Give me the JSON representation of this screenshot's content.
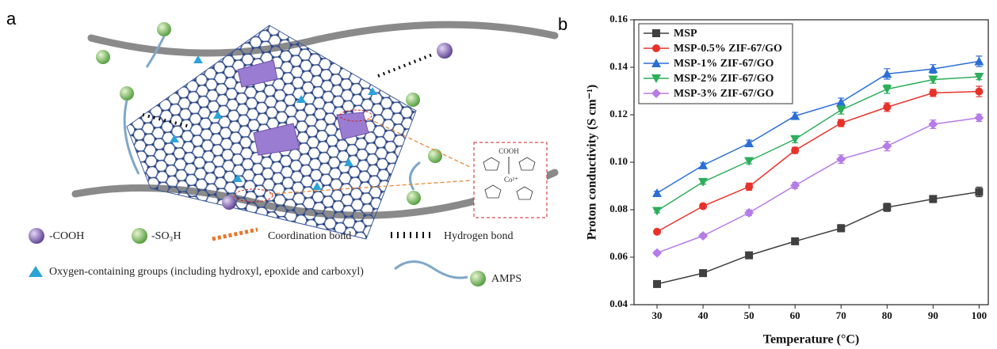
{
  "panel_a": {
    "label": "a",
    "inset_labels": [
      "COOH",
      "Co²⁺"
    ],
    "legend": [
      "-COOH",
      "-SO₃H",
      "Coordination bond",
      "Hydrogen bond",
      "Oxygen-containing groups (including hydroxyl, epoxide and carboxyl)",
      "AMPS"
    ]
  },
  "panel_b": {
    "label": "b"
  },
  "chart_data": {
    "type": "line",
    "x_label": "Temperature (°C)",
    "y_label": "Proton conductivity (S cm⁻¹)",
    "x": [
      30,
      40,
      50,
      60,
      70,
      80,
      90,
      100
    ],
    "xlim": [
      25,
      102
    ],
    "xticks": [
      30,
      40,
      50,
      60,
      70,
      80,
      90,
      100
    ],
    "ylim": [
      0.04,
      0.16
    ],
    "yticks": [
      {
        "value": 0.04,
        "label": "0.04"
      },
      {
        "value": 0.06,
        "label": "0.06"
      },
      {
        "value": 0.08,
        "label": "0.08"
      },
      {
        "value": 0.1,
        "label": "0.10"
      },
      {
        "value": 0.12,
        "label": "0.12"
      },
      {
        "value": 0.14,
        "label": "0.14"
      },
      {
        "value": 0.16,
        "label": "0.16"
      }
    ],
    "legend_position": "upper left",
    "series": [
      {
        "name": "MSP",
        "color": "#404040",
        "marker": "square",
        "values": [
          0.0487,
          0.0533,
          0.0608,
          0.0667,
          0.0722,
          0.081,
          0.0845,
          0.0875
        ],
        "errors": [
          0.0008,
          0.0008,
          0.001,
          0.0013,
          0.0015,
          0.0017,
          0.0015,
          0.002
        ]
      },
      {
        "name": "MSP-0.5% ZIF-67/GO",
        "color": "#e8312a",
        "marker": "circle",
        "values": [
          0.0707,
          0.0815,
          0.0897,
          0.105,
          0.1165,
          0.1232,
          0.1292,
          0.1298
        ],
        "errors": [
          0.0008,
          0.001,
          0.0015,
          0.0013,
          0.0015,
          0.0018,
          0.0015,
          0.0022
        ]
      },
      {
        "name": "MSP-1% ZIF-67/GO",
        "color": "#2b6fd6",
        "marker": "triangle-up",
        "values": [
          0.087,
          0.0987,
          0.108,
          0.1195,
          0.1253,
          0.1372,
          0.1393,
          0.1425
        ],
        "errors": [
          0.0008,
          0.001,
          0.0013,
          0.0015,
          0.0017,
          0.0022,
          0.0018,
          0.0022
        ]
      },
      {
        "name": "MSP-2% ZIF-67/GO",
        "color": "#2cae5b",
        "marker": "triangle-down",
        "values": [
          0.0795,
          0.0917,
          0.1005,
          0.1097,
          0.122,
          0.1308,
          0.1348,
          0.136
        ],
        "errors": [
          0.0008,
          0.001,
          0.0012,
          0.0015,
          0.0017,
          0.0018,
          0.0015,
          0.0012
        ]
      },
      {
        "name": "MSP-3% ZIF-67/GO",
        "color": "#b57be8",
        "marker": "diamond",
        "values": [
          0.0618,
          0.069,
          0.0787,
          0.0902,
          0.1013,
          0.1068,
          0.116,
          0.1187
        ],
        "errors": [
          0.0008,
          0.0008,
          0.0012,
          0.0013,
          0.0018,
          0.002,
          0.0018,
          0.0015
        ]
      }
    ]
  }
}
